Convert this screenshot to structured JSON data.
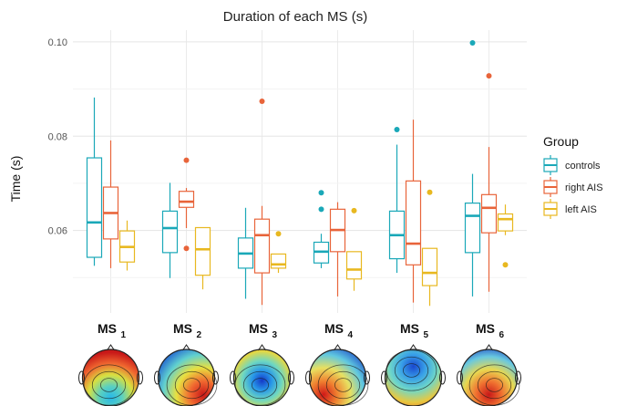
{
  "chart_data": {
    "type": "boxplot",
    "title": "Duration of each MS (s)",
    "xlabel": "",
    "ylabel": "Time (s)",
    "ylim": [
      0.0425,
      0.1025
    ],
    "yticks": [
      0.06,
      0.08,
      0.1
    ],
    "ytick_labels": [
      "0.06",
      "0.08",
      "0.10"
    ],
    "grid": true,
    "legend": {
      "title": "Group",
      "position": "right",
      "entries": [
        "controls",
        "right AIS",
        "left AIS"
      ]
    },
    "categories": [
      {
        "main": "MS",
        "sub": "1"
      },
      {
        "main": "MS",
        "sub": "2"
      },
      {
        "main": "MS",
        "sub": "3"
      },
      {
        "main": "MS",
        "sub": "4"
      },
      {
        "main": "MS",
        "sub": "5"
      },
      {
        "main": "MS",
        "sub": "6"
      }
    ],
    "series": [
      {
        "name": "controls",
        "color": "#1aa8b8",
        "boxes": [
          {
            "min": 0.0525,
            "q1": 0.0543,
            "median": 0.0617,
            "q3": 0.0754,
            "max": 0.0882,
            "outliers": []
          },
          {
            "min": 0.0499,
            "q1": 0.0553,
            "median": 0.0605,
            "q3": 0.0641,
            "max": 0.0701,
            "outliers": []
          },
          {
            "min": 0.0455,
            "q1": 0.052,
            "median": 0.0551,
            "q3": 0.0584,
            "max": 0.0648,
            "outliers": []
          },
          {
            "min": 0.052,
            "q1": 0.0531,
            "median": 0.0555,
            "q3": 0.0575,
            "max": 0.0593,
            "outliers": [
              0.068,
              0.0645
            ]
          },
          {
            "min": 0.051,
            "q1": 0.054,
            "median": 0.059,
            "q3": 0.0641,
            "max": 0.0782,
            "outliers": [
              0.0814
            ]
          },
          {
            "min": 0.046,
            "q1": 0.0553,
            "median": 0.0631,
            "q3": 0.0658,
            "max": 0.072,
            "outliers": [
              0.0998
            ]
          }
        ]
      },
      {
        "name": "right AIS",
        "color": "#e8643a",
        "boxes": [
          {
            "min": 0.052,
            "q1": 0.0582,
            "median": 0.0637,
            "q3": 0.0692,
            "max": 0.0791,
            "outliers": []
          },
          {
            "min": 0.0605,
            "q1": 0.0649,
            "median": 0.0661,
            "q3": 0.0683,
            "max": 0.069,
            "outliers": [
              0.0749,
              0.0562
            ]
          },
          {
            "min": 0.0442,
            "q1": 0.051,
            "median": 0.059,
            "q3": 0.0624,
            "max": 0.0652,
            "outliers": [
              0.0874
            ]
          },
          {
            "min": 0.046,
            "q1": 0.0555,
            "median": 0.0601,
            "q3": 0.0645,
            "max": 0.066,
            "outliers": []
          },
          {
            "min": 0.0447,
            "q1": 0.0527,
            "median": 0.0572,
            "q3": 0.0705,
            "max": 0.0835,
            "outliers": []
          },
          {
            "min": 0.047,
            "q1": 0.0595,
            "median": 0.0648,
            "q3": 0.0676,
            "max": 0.0777,
            "outliers": [
              0.0928
            ]
          }
        ]
      },
      {
        "name": "left AIS",
        "color": "#e8b820",
        "boxes": [
          {
            "min": 0.0515,
            "q1": 0.0533,
            "median": 0.0565,
            "q3": 0.0599,
            "max": 0.0621,
            "outliers": []
          },
          {
            "min": 0.0475,
            "q1": 0.0505,
            "median": 0.056,
            "q3": 0.0606,
            "max": 0.0606,
            "outliers": []
          },
          {
            "min": 0.051,
            "q1": 0.052,
            "median": 0.0528,
            "q3": 0.055,
            "max": 0.055,
            "outliers": [
              0.0593
            ]
          },
          {
            "min": 0.0472,
            "q1": 0.0497,
            "median": 0.0517,
            "q3": 0.0555,
            "max": 0.0555,
            "outliers": [
              0.0642
            ]
          },
          {
            "min": 0.044,
            "q1": 0.0483,
            "median": 0.051,
            "q3": 0.0562,
            "max": 0.0562,
            "outliers": [
              0.0681
            ]
          },
          {
            "min": 0.059,
            "q1": 0.0599,
            "median": 0.0624,
            "q3": 0.0635,
            "max": 0.0655,
            "outliers": [
              0.0527
            ]
          }
        ]
      }
    ],
    "topomaps": [
      "MS1",
      "MS2",
      "MS3",
      "MS4",
      "MS5",
      "MS6"
    ]
  }
}
